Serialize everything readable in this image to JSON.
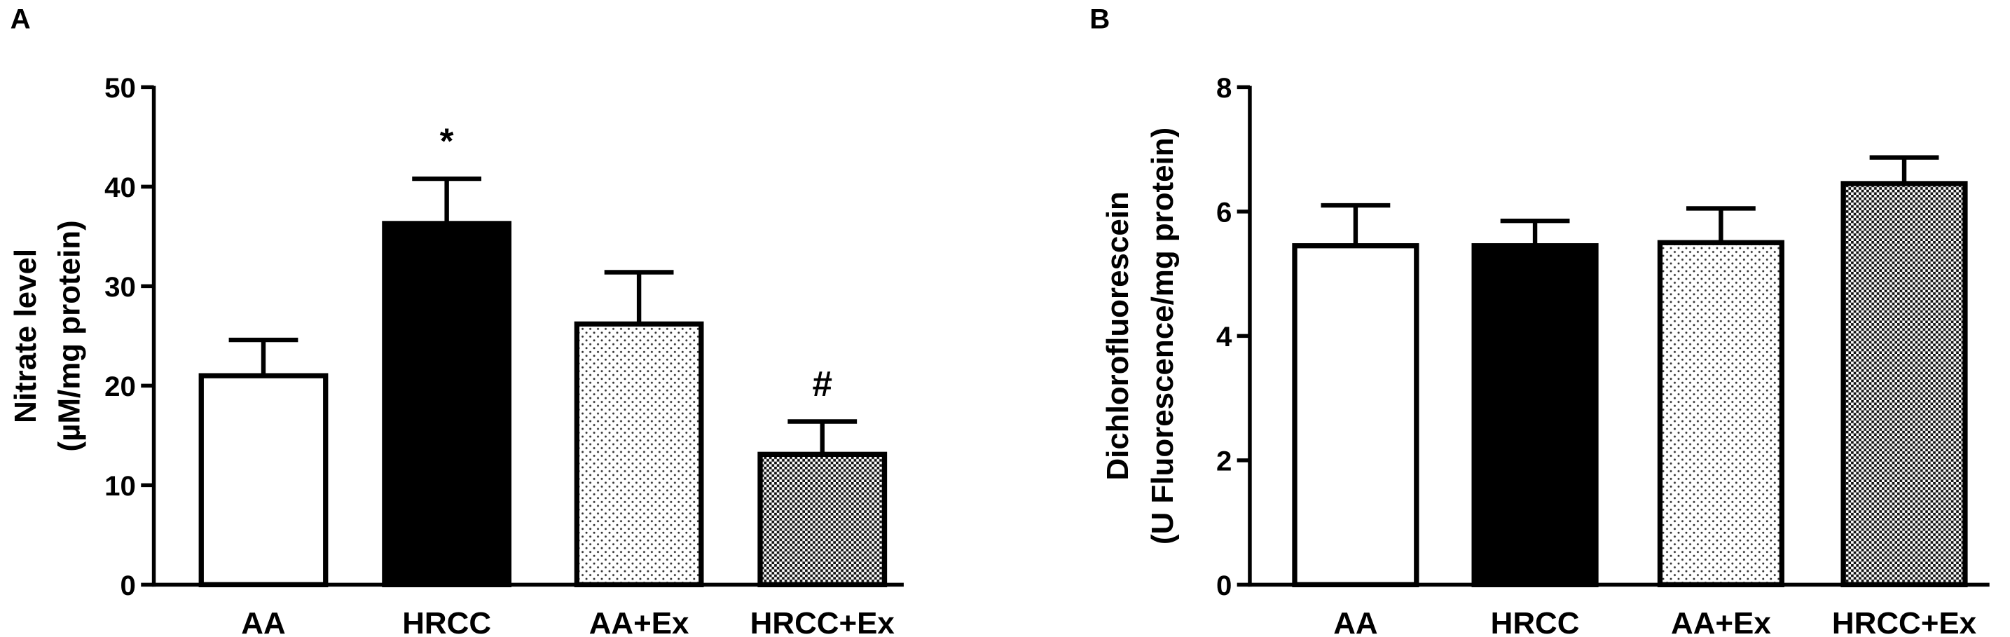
{
  "chart_data": [
    {
      "type": "bar",
      "panel": "A",
      "ylabel": [
        "Nitrate level",
        "(µM/mg protein)"
      ],
      "categories": [
        "AA",
        "HRCC",
        "AA+Ex",
        "HRCC+Ex"
      ],
      "values": [
        21,
        36.3,
        26.2,
        13.1
      ],
      "errors": [
        3.6,
        4.5,
        5.2,
        3.3
      ],
      "annotations": [
        null,
        "*",
        null,
        "#"
      ],
      "patterns": [
        "white",
        "black",
        "dots",
        "checker"
      ],
      "ylim": [
        0,
        50
      ],
      "yticks": [
        0,
        10,
        20,
        30,
        40,
        50
      ]
    },
    {
      "type": "bar",
      "panel": "B",
      "ylabel": [
        "Dichlorofluorescein",
        "(U Fluorescence/mg protein)"
      ],
      "categories": [
        "AA",
        "HRCC",
        "AA+Ex",
        "HRCC+Ex"
      ],
      "values": [
        5.45,
        5.45,
        5.5,
        6.45
      ],
      "errors": [
        0.65,
        0.4,
        0.55,
        0.42
      ],
      "annotations": [
        null,
        null,
        null,
        null
      ],
      "patterns": [
        "white",
        "black",
        "dots",
        "checker"
      ],
      "ylim": [
        0,
        8
      ],
      "yticks": [
        0,
        2,
        4,
        6,
        8
      ]
    }
  ]
}
